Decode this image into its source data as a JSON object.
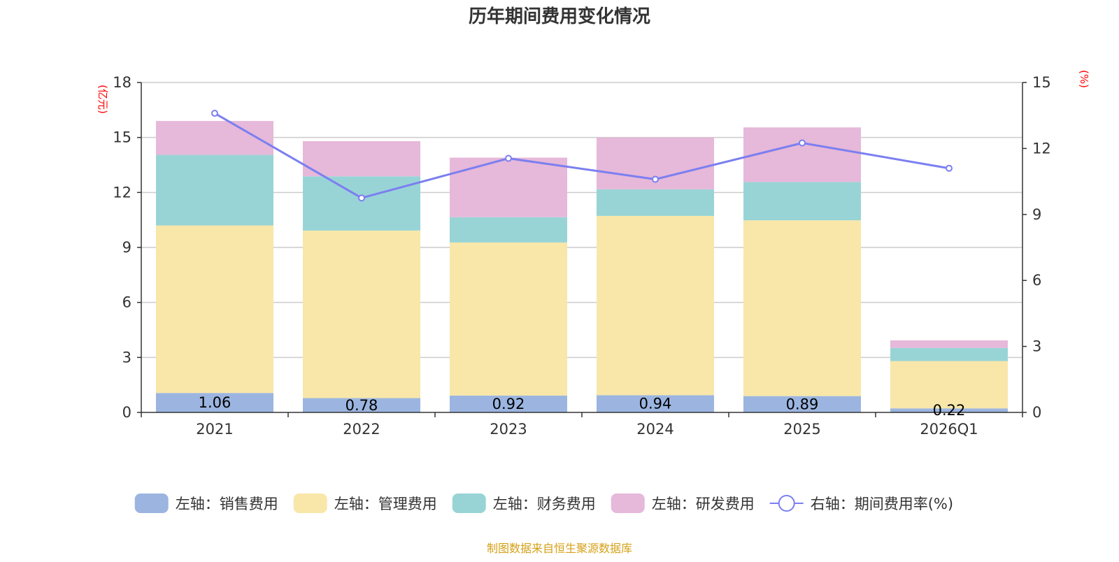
{
  "chart_data": {
    "type": "bar",
    "title": "历年期间费用变化情况",
    "categories": [
      "2021",
      "2022",
      "2023",
      "2024",
      "2025",
      "2026Q1"
    ],
    "stacked": true,
    "series": [
      {
        "name": "左轴：销售费用",
        "axis": "left",
        "color": "#9bb5e0",
        "values": [
          1.06,
          0.78,
          0.92,
          0.94,
          0.89,
          0.22
        ]
      },
      {
        "name": "左轴：管理费用",
        "axis": "left",
        "color": "#f8e7a9",
        "values": [
          9.14,
          9.14,
          8.35,
          9.78,
          9.59,
          2.58
        ]
      },
      {
        "name": "左轴：财务费用",
        "axis": "left",
        "color": "#98d4d6",
        "values": [
          3.85,
          2.96,
          1.38,
          1.45,
          2.09,
          0.72
        ]
      },
      {
        "name": "左轴：研发费用",
        "axis": "left",
        "color": "#e6b8d9",
        "values": [
          1.85,
          1.92,
          3.25,
          2.83,
          2.98,
          0.41
        ]
      }
    ],
    "line_series": {
      "name": "右轴：期间费用率(%)",
      "axis": "right",
      "color": "#7b7ff0",
      "values": [
        13.6,
        9.75,
        11.55,
        10.6,
        12.25,
        11.1
      ]
    },
    "data_labels": [
      "1.06",
      "0.78",
      "0.92",
      "0.94",
      "0.89",
      "0.22"
    ],
    "left_axis": {
      "unit": "(亿元)",
      "ticks": [
        "0",
        "3",
        "6",
        "9",
        "12",
        "15",
        "18"
      ],
      "min": 0,
      "max": 18
    },
    "right_axis": {
      "unit": "(%)",
      "ticks": [
        "0",
        "3",
        "6",
        "9",
        "12",
        "15"
      ],
      "min": 0,
      "max": 15
    },
    "grid": true,
    "legend_position": "bottom"
  },
  "footer": {
    "source": "制图数据来自恒生聚源数据库"
  }
}
